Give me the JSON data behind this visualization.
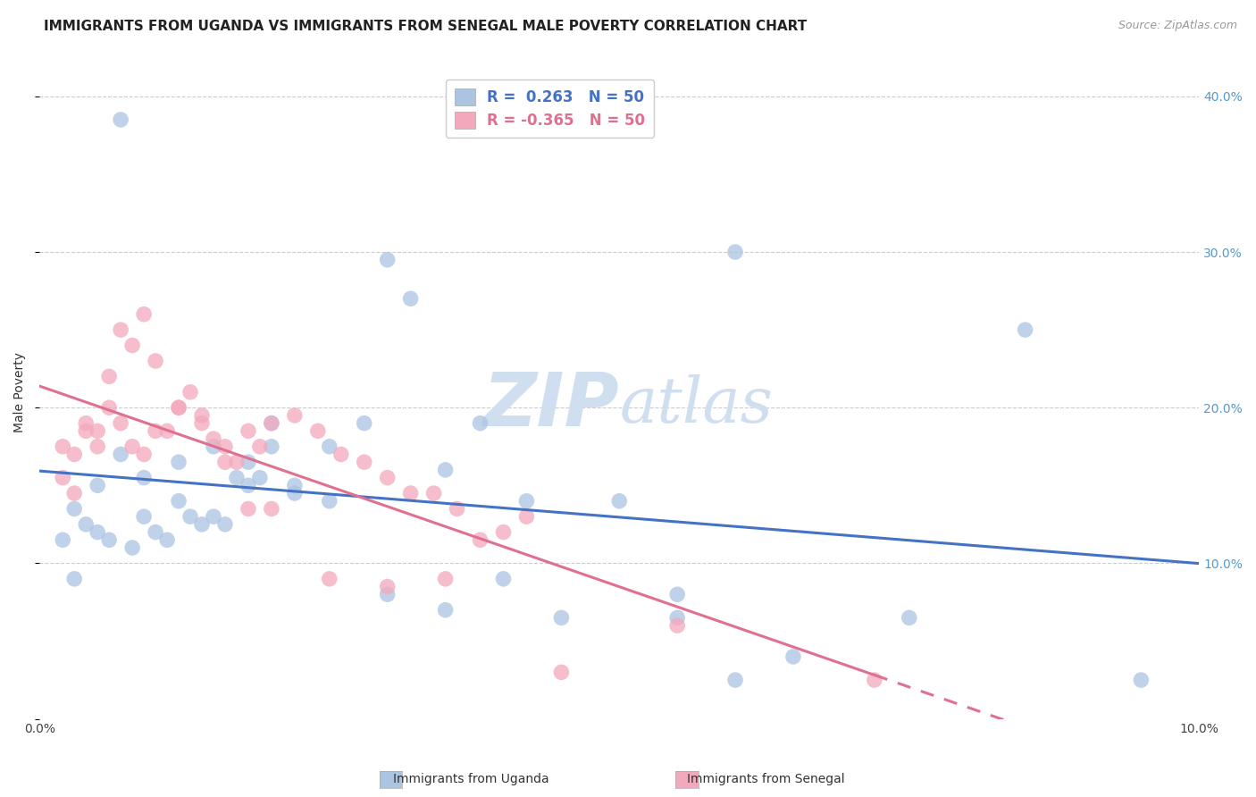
{
  "title": "IMMIGRANTS FROM UGANDA VS IMMIGRANTS FROM SENEGAL MALE POVERTY CORRELATION CHART",
  "source": "Source: ZipAtlas.com",
  "ylabel": "Male Poverty",
  "xlim": [
    0.0,
    0.1
  ],
  "ylim": [
    0.0,
    0.42
  ],
  "y_ticks": [
    0.0,
    0.1,
    0.2,
    0.3,
    0.4
  ],
  "y_tick_labels": [
    "",
    "10.0%",
    "20.0%",
    "30.0%",
    "40.0%"
  ],
  "uganda_color": "#aac4e2",
  "senegal_color": "#f4a8bc",
  "uganda_line_color": "#4472c4",
  "senegal_line_color": "#e07090",
  "legend_label_uganda": "Immigrants from Uganda",
  "legend_label_senegal": "Immigrants from Senegal",
  "R_uganda": 0.263,
  "N_uganda": 50,
  "R_senegal": -0.365,
  "N_senegal": 50,
  "uganda_x": [
    0.007,
    0.016,
    0.003,
    0.004,
    0.005,
    0.006,
    0.008,
    0.009,
    0.01,
    0.011,
    0.012,
    0.013,
    0.014,
    0.015,
    0.017,
    0.018,
    0.019,
    0.02,
    0.022,
    0.025,
    0.028,
    0.03,
    0.032,
    0.035,
    0.038,
    0.04,
    0.042,
    0.05,
    0.055,
    0.06,
    0.002,
    0.003,
    0.005,
    0.007,
    0.009,
    0.012,
    0.015,
    0.018,
    0.02,
    0.022,
    0.025,
    0.03,
    0.035,
    0.045,
    0.055,
    0.06,
    0.065,
    0.075,
    0.085,
    0.095
  ],
  "uganda_y": [
    0.385,
    0.125,
    0.135,
    0.125,
    0.12,
    0.115,
    0.11,
    0.13,
    0.12,
    0.115,
    0.14,
    0.13,
    0.125,
    0.175,
    0.155,
    0.165,
    0.155,
    0.19,
    0.145,
    0.14,
    0.19,
    0.295,
    0.27,
    0.16,
    0.19,
    0.09,
    0.14,
    0.14,
    0.08,
    0.3,
    0.115,
    0.09,
    0.15,
    0.17,
    0.155,
    0.165,
    0.13,
    0.15,
    0.175,
    0.15,
    0.175,
    0.08,
    0.07,
    0.065,
    0.065,
    0.025,
    0.04,
    0.065,
    0.25,
    0.025
  ],
  "senegal_x": [
    0.002,
    0.003,
    0.004,
    0.005,
    0.006,
    0.007,
    0.008,
    0.009,
    0.01,
    0.011,
    0.012,
    0.013,
    0.014,
    0.015,
    0.016,
    0.017,
    0.018,
    0.019,
    0.02,
    0.022,
    0.024,
    0.026,
    0.028,
    0.03,
    0.032,
    0.034,
    0.036,
    0.038,
    0.04,
    0.042,
    0.002,
    0.003,
    0.004,
    0.005,
    0.006,
    0.007,
    0.008,
    0.009,
    0.01,
    0.012,
    0.014,
    0.016,
    0.018,
    0.02,
    0.025,
    0.03,
    0.035,
    0.045,
    0.055,
    0.072
  ],
  "senegal_y": [
    0.155,
    0.145,
    0.185,
    0.175,
    0.2,
    0.19,
    0.175,
    0.17,
    0.185,
    0.185,
    0.2,
    0.21,
    0.19,
    0.18,
    0.175,
    0.165,
    0.185,
    0.175,
    0.19,
    0.195,
    0.185,
    0.17,
    0.165,
    0.155,
    0.145,
    0.145,
    0.135,
    0.115,
    0.12,
    0.13,
    0.175,
    0.17,
    0.19,
    0.185,
    0.22,
    0.25,
    0.24,
    0.26,
    0.23,
    0.2,
    0.195,
    0.165,
    0.135,
    0.135,
    0.09,
    0.085,
    0.09,
    0.03,
    0.06,
    0.025
  ],
  "background_color": "#ffffff",
  "grid_color": "#cccccc",
  "title_fontsize": 11,
  "axis_label_fontsize": 10,
  "tick_fontsize": 10,
  "watermark_color": "#cfdff0",
  "watermark_fontsize": 60
}
